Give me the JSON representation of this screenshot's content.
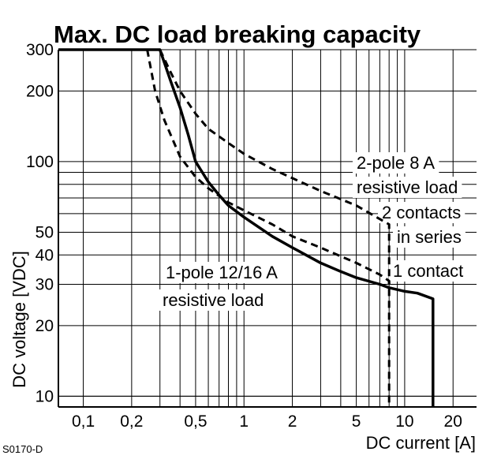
{
  "chart_data": {
    "type": "line",
    "title": "Max. DC load breaking capacity",
    "xlabel": "DC current [A]",
    "ylabel": "DC voltage [VDC]",
    "x_scale": "log",
    "y_scale": "log",
    "xlim": [
      0.07,
      28
    ],
    "ylim": [
      9,
      300
    ],
    "grid": true,
    "x_ticks": [
      {
        "value": 0.1,
        "label": "0,1"
      },
      {
        "value": 0.2,
        "label": "0,2"
      },
      {
        "value": 0.5,
        "label": "0,5"
      },
      {
        "value": 1,
        "label": "1"
      },
      {
        "value": 2,
        "label": "2"
      },
      {
        "value": 5,
        "label": "5"
      },
      {
        "value": 10,
        "label": "10"
      },
      {
        "value": 20,
        "label": "20"
      }
    ],
    "y_ticks": [
      {
        "value": 10,
        "label": "10"
      },
      {
        "value": 20,
        "label": "20"
      },
      {
        "value": 30,
        "label": "30"
      },
      {
        "value": 40,
        "label": "40"
      },
      {
        "value": 50,
        "label": "50"
      },
      {
        "value": 100,
        "label": "100"
      },
      {
        "value": 200,
        "label": "200"
      },
      {
        "value": 300,
        "label": "300"
      }
    ],
    "series": [
      {
        "style": "solid",
        "x": [
          0.07,
          0.3,
          0.35,
          0.4,
          0.45,
          0.5,
          0.6,
          0.7,
          0.8,
          1,
          1.5,
          2,
          3,
          4,
          5,
          7,
          8,
          10,
          12,
          15,
          15,
          15
        ],
        "y": [
          300,
          300,
          220,
          170,
          130,
          100,
          82,
          72,
          65,
          58,
          48,
          43,
          37,
          34,
          32,
          30,
          29,
          28,
          27.5,
          26,
          18,
          9
        ]
      },
      {
        "style": "dashed",
        "x": [
          0.25,
          0.28,
          0.32,
          0.4,
          0.5,
          0.6,
          0.8,
          1,
          1.5,
          2,
          3,
          5,
          7,
          8,
          8
        ],
        "y": [
          300,
          200,
          150,
          105,
          86,
          77,
          67,
          62,
          54,
          48,
          43,
          37,
          33,
          31,
          9
        ]
      },
      {
        "style": "dashed",
        "x": [
          0.3,
          0.35,
          0.4,
          0.5,
          0.6,
          0.8,
          1,
          1.5,
          2,
          3,
          5,
          8,
          8
        ],
        "y": [
          300,
          240,
          200,
          160,
          138,
          120,
          108,
          93,
          85,
          75,
          65,
          54,
          30
        ]
      }
    ],
    "annotations": [
      {
        "text": "2-pole 8 A"
      },
      {
        "text": "resistive load"
      },
      {
        "text": "2 contacts"
      },
      {
        "text": "in series"
      },
      {
        "text": "1 contact"
      },
      {
        "text": "1-pole 12/16 A"
      },
      {
        "text": "resistive load"
      }
    ]
  },
  "figure_code": "S0170-D"
}
